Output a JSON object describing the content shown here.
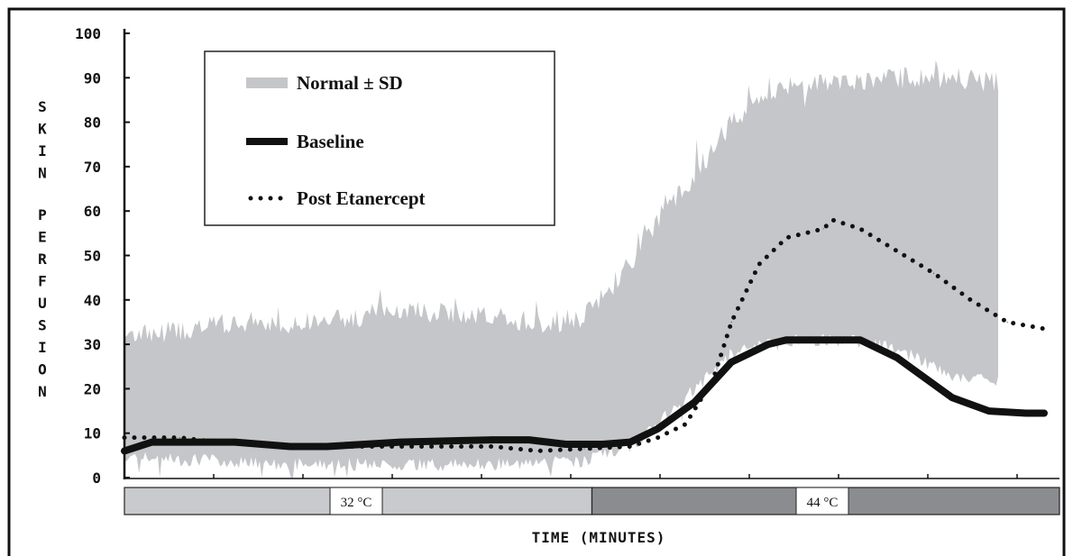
{
  "chart_data": {
    "type": "line",
    "title": "",
    "xlabel": "TIME (MINUTES)",
    "ylabel": "SKIN PERFUSION",
    "ylim": [
      0,
      100
    ],
    "yticks": [
      "0",
      "10",
      "20",
      "30",
      "40",
      "50",
      "60",
      "70",
      "80",
      "90",
      "100"
    ],
    "xlim": [
      0,
      1
    ],
    "grid": false,
    "legend_position": "top-left",
    "legend": [
      {
        "label": "Normal ± SD",
        "style": "band",
        "color": "#c4c6c9"
      },
      {
        "label": "Baseline",
        "style": "solid",
        "color": "#111111"
      },
      {
        "label": "Post Etanercept",
        "style": "dotted",
        "color": "#111111"
      }
    ],
    "temperature_phases": [
      {
        "label": "32 °C",
        "x_start": 0.0,
        "x_end": 0.5,
        "color": "#c8cacd"
      },
      {
        "label": "44 °C",
        "x_start": 0.5,
        "x_end": 1.0,
        "color": "#8a8c90"
      }
    ],
    "series": [
      {
        "name": "Normal ± SD",
        "kind": "band",
        "x": [
          0.0,
          0.05,
          0.1,
          0.15,
          0.2,
          0.25,
          0.3,
          0.35,
          0.4,
          0.45,
          0.5,
          0.55,
          0.58,
          0.62,
          0.66,
          0.7,
          0.74,
          0.78,
          0.82,
          0.86,
          0.9,
          0.95
        ],
        "upper": [
          32,
          33,
          34,
          35,
          35,
          36,
          38,
          37,
          36,
          35,
          36,
          48,
          58,
          68,
          80,
          86,
          88,
          89,
          90,
          90,
          90,
          89
        ],
        "lower": [
          5,
          4,
          4,
          3,
          3,
          3,
          3,
          3,
          3,
          3,
          4,
          7,
          12,
          20,
          28,
          31,
          31,
          31,
          30,
          27,
          23,
          22
        ]
      },
      {
        "name": "Baseline",
        "kind": "solid",
        "x": [
          0.0,
          0.03,
          0.08,
          0.12,
          0.18,
          0.22,
          0.3,
          0.4,
          0.44,
          0.48,
          0.52,
          0.55,
          0.58,
          0.62,
          0.66,
          0.7,
          0.72,
          0.76,
          0.8,
          0.84,
          0.88,
          0.9,
          0.94,
          0.98,
          1.0
        ],
        "values": [
          6,
          8,
          8,
          8,
          7,
          7,
          8,
          8.5,
          8.5,
          7.5,
          7.5,
          8,
          11,
          17,
          26,
          30,
          31,
          31,
          31,
          27,
          21,
          18,
          15,
          14.5,
          14.5
        ]
      },
      {
        "name": "Post Etanercept",
        "kind": "dotted",
        "x": [
          0.0,
          0.06,
          0.1,
          0.2,
          0.3,
          0.4,
          0.45,
          0.5,
          0.55,
          0.58,
          0.61,
          0.64,
          0.66,
          0.69,
          0.72,
          0.76,
          0.77,
          0.8,
          0.84,
          0.88,
          0.92,
          0.96,
          1.0
        ],
        "values": [
          9,
          9,
          8,
          7,
          7,
          7,
          6,
          6.5,
          7,
          9,
          12,
          22,
          35,
          48,
          54,
          56,
          58,
          56,
          51,
          46,
          40,
          35,
          33.5
        ]
      }
    ]
  }
}
